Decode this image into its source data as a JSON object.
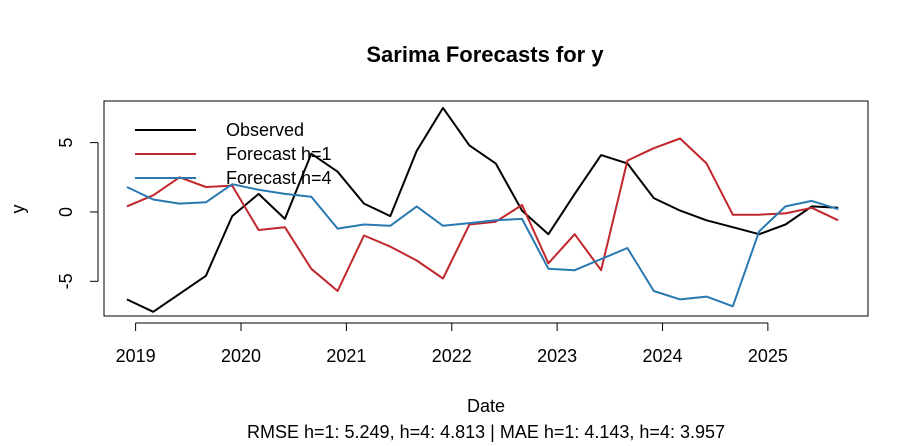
{
  "chart_data": {
    "type": "line",
    "title": "Sarima Forecasts for y",
    "xlabel": "Date",
    "ylabel": "y",
    "subtitle": "RMSE h=1: 5.249, h=4: 4.813  |  MAE h=1: 4.143, h=4: 3.957",
    "xlim": [
      2018.7,
      2025.95
    ],
    "ylim": [
      -7.5,
      8.0
    ],
    "x_ticks": [
      2019,
      2020,
      2021,
      2022,
      2023,
      2024,
      2025
    ],
    "x_tick_labels": [
      "2019",
      "2020",
      "2021",
      "2022",
      "2023",
      "2024",
      "2025"
    ],
    "y_ticks": [
      -5,
      0,
      5
    ],
    "y_tick_labels": [
      "-5",
      "0",
      "5"
    ],
    "legend_position": "top-left",
    "grid": false,
    "x": [
      2018.917,
      2019.167,
      2019.417,
      2019.667,
      2019.917,
      2020.167,
      2020.417,
      2020.667,
      2020.917,
      2021.167,
      2021.417,
      2021.667,
      2021.917,
      2022.167,
      2022.417,
      2022.667,
      2022.917,
      2023.167,
      2023.417,
      2023.667,
      2023.917,
      2024.167,
      2024.417,
      2024.667,
      2024.917,
      2025.167,
      2025.417,
      2025.667
    ],
    "series": [
      {
        "name": "Observed",
        "color": "#000000",
        "values": [
          -6.3,
          -7.2,
          -5.9,
          -4.6,
          -0.3,
          1.3,
          -0.5,
          4.2,
          2.9,
          0.6,
          -0.3,
          4.4,
          7.5,
          4.8,
          3.5,
          0.1,
          -1.6,
          1.3,
          4.1,
          3.5,
          1.0,
          0.1,
          -0.6,
          -1.1,
          -1.6,
          -0.9,
          0.4,
          0.3
        ]
      },
      {
        "name": "Forecast h=1",
        "color": "#c0272d",
        "values": [
          0.4,
          1.2,
          2.5,
          1.8,
          1.9,
          -1.3,
          -1.1,
          -4.1,
          -5.7,
          -1.7,
          -2.5,
          -3.5,
          -4.8,
          -0.9,
          -0.7,
          0.5,
          -3.7,
          -1.6,
          -4.2,
          3.7,
          4.6,
          5.3,
          3.5,
          -0.2,
          -0.2,
          -0.1,
          0.3,
          -0.6
        ]
      },
      {
        "name": "Forecast h=4",
        "color": "#2879b0",
        "values": [
          1.8,
          0.9,
          0.6,
          0.7,
          2.0,
          1.6,
          1.3,
          1.1,
          -1.2,
          -0.9,
          -1.0,
          0.4,
          -1.0,
          -0.8,
          -0.6,
          -0.5,
          -4.1,
          -4.2,
          -3.4,
          -2.6,
          -5.7,
          -6.3,
          -6.1,
          -6.8,
          -1.4,
          0.4,
          0.8,
          0.2
        ]
      }
    ]
  }
}
